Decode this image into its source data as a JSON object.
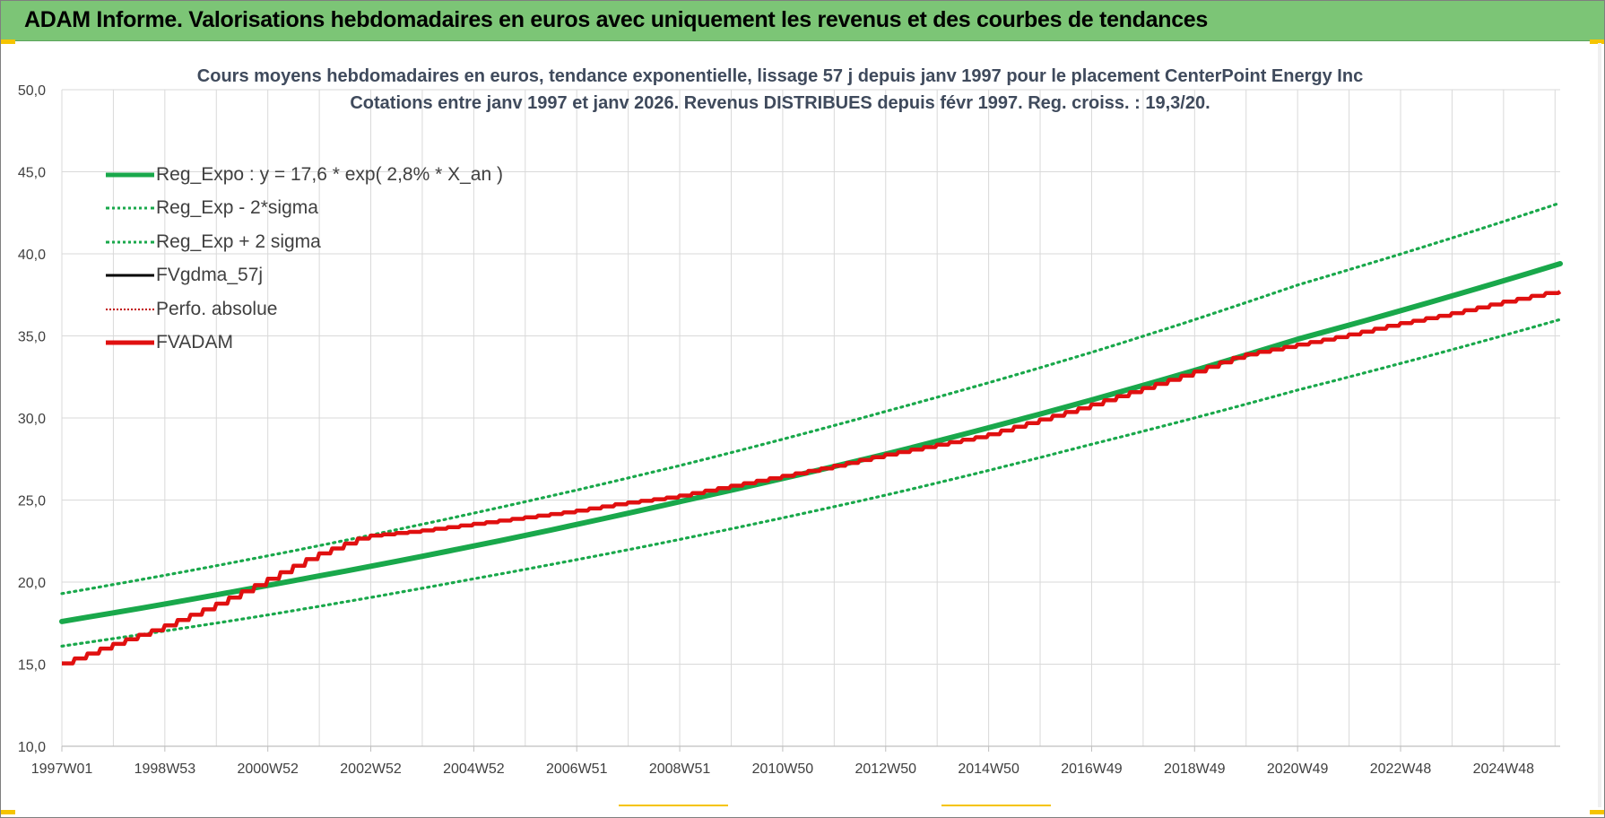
{
  "banner": {
    "title": "ADAM Informe. Valorisations hebdomadaires en euros avec uniquement les revenus et des courbes de tendances"
  },
  "colors": {
    "banner_bg": "#7cc576",
    "reg_expo": "#19a84b",
    "sigma": "#19a84b",
    "fvgdma": "#000000",
    "perfo": "#c00000",
    "fvadam": "#e01010",
    "grid": "#d9d9d9",
    "axis_text": "#404040"
  },
  "chart_data": {
    "type": "line",
    "title_line1": "Cours moyens hebdomadaires en euros, tendance exponentielle, lissage 57 j depuis janv 1997 pour le placement CenterPoint Energy Inc",
    "title_line2": "Cotations entre janv 1997 et janv 2026. Revenus DISTRIBUES depuis févr 1997. Reg. croiss. : 19,3/20.",
    "xlabel": "",
    "ylabel": "",
    "ylim": [
      10,
      50
    ],
    "yticks": [
      "10,0",
      "15,0",
      "20,0",
      "25,0",
      "30,0",
      "35,0",
      "40,0",
      "45,0",
      "50,0"
    ],
    "xlim_years": [
      1997.0,
      2026.1
    ],
    "xticks": [
      "1997W01",
      "1998W53",
      "2000W52",
      "2002W52",
      "2004W52",
      "2006W51",
      "2008W51",
      "2010W50",
      "2012W50",
      "2014W50",
      "2016W49",
      "2018W49",
      "2020W49",
      "2022W48",
      "2024W48"
    ],
    "grid": true,
    "legend_position": "top-left",
    "legend": [
      {
        "name": "Reg_Expo : y = 17,6 * exp( 2,8% *  X_an )",
        "style": "solid-thick",
        "color": "#19a84b"
      },
      {
        "name": "Reg_Exp - 2*sigma",
        "style": "dotted",
        "color": "#19a84b"
      },
      {
        "name": "Reg_Exp + 2 sigma",
        "style": "dotted",
        "color": "#19a84b"
      },
      {
        "name": "FVgdma_57j",
        "style": "solid",
        "color": "#000000"
      },
      {
        "name": "Perfo. absolue",
        "style": "dotted-thin",
        "color": "#c00000"
      },
      {
        "name": "FVADAM",
        "style": "solid-thick",
        "color": "#e01010"
      }
    ],
    "series": [
      {
        "name": "Reg_Expo : y = 17,6 * exp( 2,8% *  X_an )",
        "x": [
          1997.0,
          2001.0,
          2005.0,
          2009.0,
          2013.0,
          2017.0,
          2021.0,
          2026.1
        ],
        "values": [
          17.6,
          19.8,
          22.2,
          24.9,
          27.8,
          31.1,
          34.8,
          39.4
        ]
      },
      {
        "name": "Reg_Exp - 2*sigma",
        "x": [
          1997.0,
          2001.0,
          2005.0,
          2009.0,
          2013.0,
          2017.0,
          2021.0,
          2026.1
        ],
        "values": [
          16.1,
          18.0,
          20.2,
          22.6,
          25.3,
          28.4,
          31.7,
          36.0
        ]
      },
      {
        "name": "Reg_Exp + 2 sigma",
        "x": [
          1997.0,
          2001.0,
          2005.0,
          2009.0,
          2013.0,
          2017.0,
          2021.0,
          2026.1
        ],
        "values": [
          19.3,
          21.6,
          24.2,
          27.1,
          30.4,
          34.0,
          38.1,
          43.1
        ]
      },
      {
        "name": "FVADAM",
        "x": [
          1997.0,
          1998.0,
          1999.0,
          2000.0,
          2001.0,
          2002.0,
          2003.0,
          2004.0,
          2005.0,
          2006.0,
          2007.0,
          2008.0,
          2009.0,
          2010.0,
          2011.0,
          2012.0,
          2013.0,
          2014.0,
          2015.0,
          2016.0,
          2017.0,
          2018.0,
          2019.0,
          2020.0,
          2021.0,
          2022.0,
          2023.0,
          2024.0,
          2025.0,
          2026.1
        ],
        "values": [
          14.9,
          16.1,
          17.2,
          18.5,
          20.0,
          21.6,
          22.8,
          23.1,
          23.5,
          23.9,
          24.3,
          24.8,
          25.2,
          25.8,
          26.4,
          27.0,
          27.7,
          28.3,
          28.9,
          29.8,
          30.7,
          31.7,
          32.7,
          33.8,
          34.4,
          35.0,
          35.7,
          36.3,
          37.0,
          37.7
        ]
      }
    ]
  }
}
